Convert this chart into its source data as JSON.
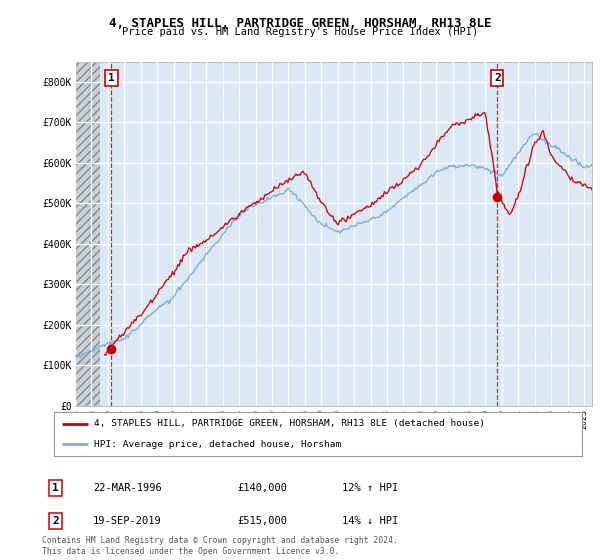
{
  "title1": "4, STAPLES HILL, PARTRIDGE GREEN, HORSHAM, RH13 8LE",
  "title2": "Price paid vs. HM Land Registry's House Price Index (HPI)",
  "xlim": [
    1994.0,
    2025.5
  ],
  "ylim": [
    0,
    850000
  ],
  "yticks": [
    0,
    100000,
    200000,
    300000,
    400000,
    500000,
    600000,
    700000,
    800000
  ],
  "ytick_labels": [
    "£0",
    "£100K",
    "£200K",
    "£300K",
    "£400K",
    "£500K",
    "£600K",
    "£700K",
    "£800K"
  ],
  "xticks": [
    1994,
    1995,
    1996,
    1997,
    1998,
    1999,
    2000,
    2001,
    2002,
    2003,
    2004,
    2005,
    2006,
    2007,
    2008,
    2009,
    2010,
    2011,
    2012,
    2013,
    2014,
    2015,
    2016,
    2017,
    2018,
    2019,
    2020,
    2021,
    2022,
    2023,
    2024,
    2025
  ],
  "sale1_x": 1996.22,
  "sale1_y": 140000,
  "sale1_label": "1",
  "sale1_date": "22-MAR-1996",
  "sale1_price": "£140,000",
  "sale1_hpi": "12% ↑ HPI",
  "sale2_x": 2019.72,
  "sale2_y": 515000,
  "sale2_label": "2",
  "sale2_date": "19-SEP-2019",
  "sale2_price": "£515,000",
  "sale2_hpi": "14% ↓ HPI",
  "line_color_sale": "#cc0000",
  "line_color_hpi": "#7aacd6",
  "legend_entry1": "4, STAPLES HILL, PARTRIDGE GREEN, HORSHAM, RH13 8LE (detached house)",
  "legend_entry2": "HPI: Average price, detached house, Horsham",
  "footnote1": "Contains HM Land Registry data © Crown copyright and database right 2024.",
  "footnote2": "This data is licensed under the Open Government Licence v3.0.",
  "background_color": "#ffffff",
  "plot_bg_color": "#dce8f5",
  "hatch_bg_color": "#c8d0d8",
  "grid_color": "#ffffff"
}
